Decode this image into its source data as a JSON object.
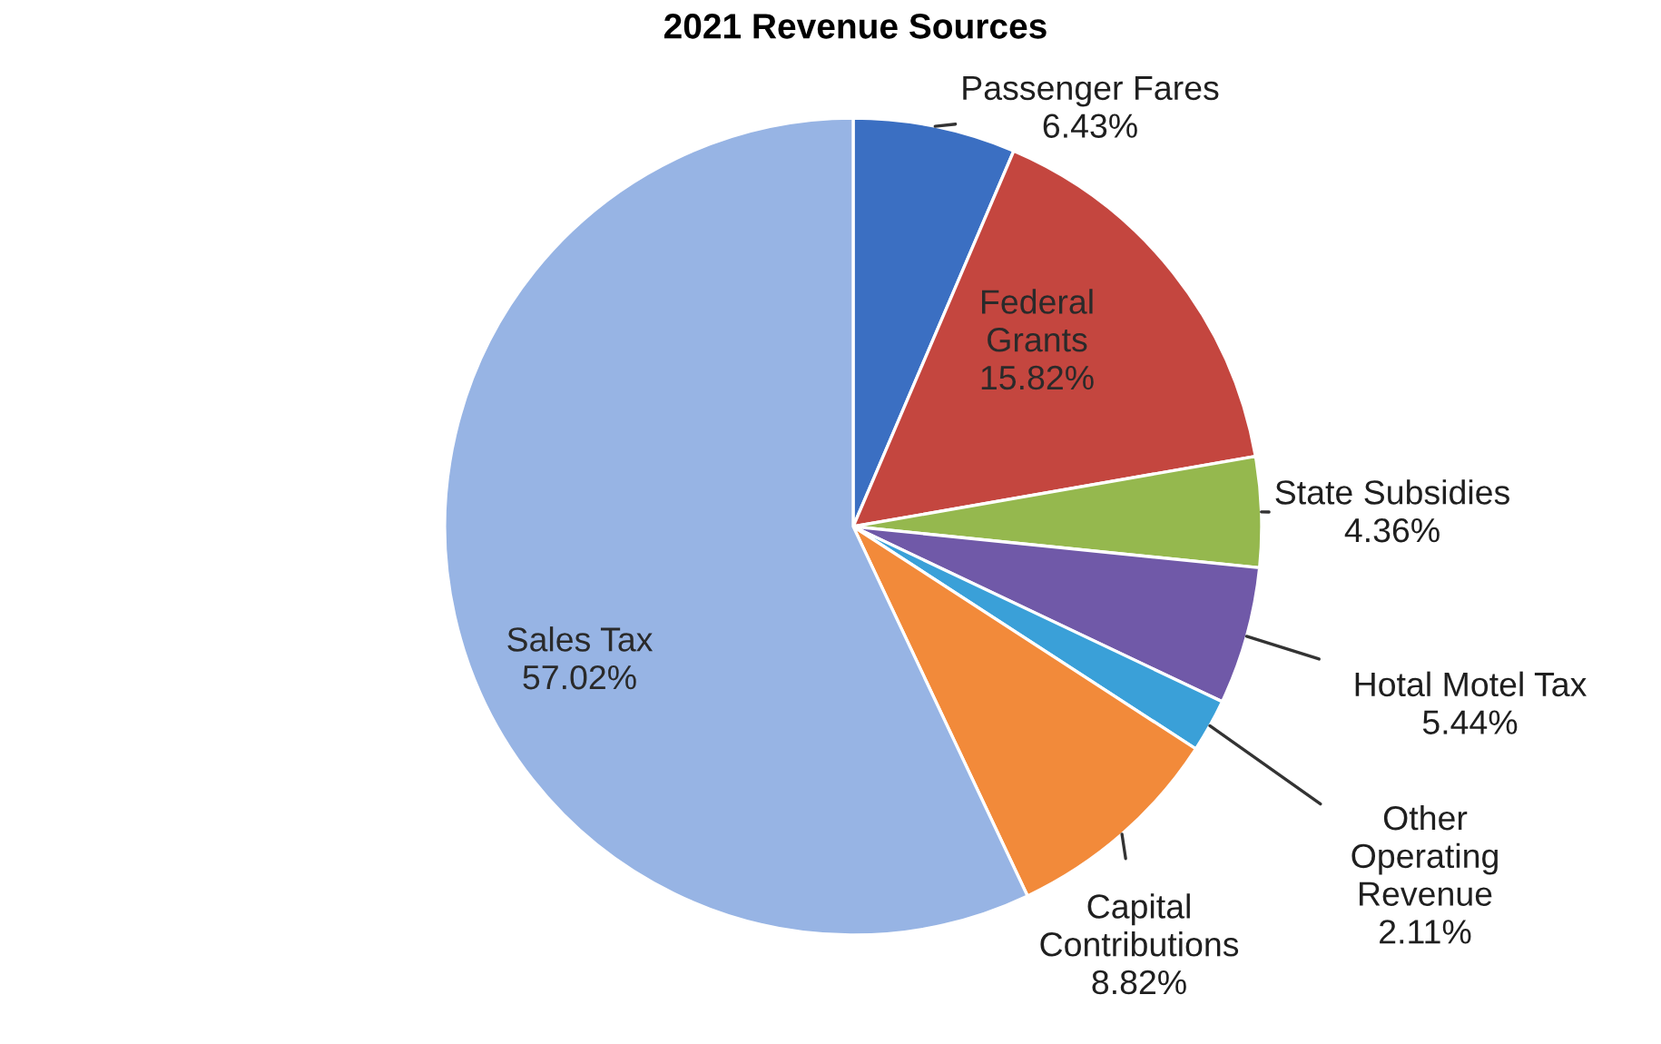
{
  "chart_data": {
    "type": "pie",
    "title": "2021 Revenue Sources",
    "categories": [
      "Passenger Fares",
      "Federal Grants",
      "State Subsidies",
      "Hotal Motel Tax",
      "Other Operating Revenue",
      "Capital Contributions",
      "Sales Tax"
    ],
    "values": [
      6.43,
      15.82,
      4.36,
      5.44,
      2.11,
      8.82,
      57.02
    ],
    "value_labels": [
      "6.43%",
      "15.82%",
      "4.36%",
      "5.44%",
      "2.11%",
      "8.82%",
      "57.02%"
    ],
    "colors": [
      "#3b6fc2",
      "#c4463f",
      "#95b84e",
      "#7059a8",
      "#3aa0d8",
      "#f28a3a",
      "#97b4e4"
    ],
    "legend": false
  }
}
